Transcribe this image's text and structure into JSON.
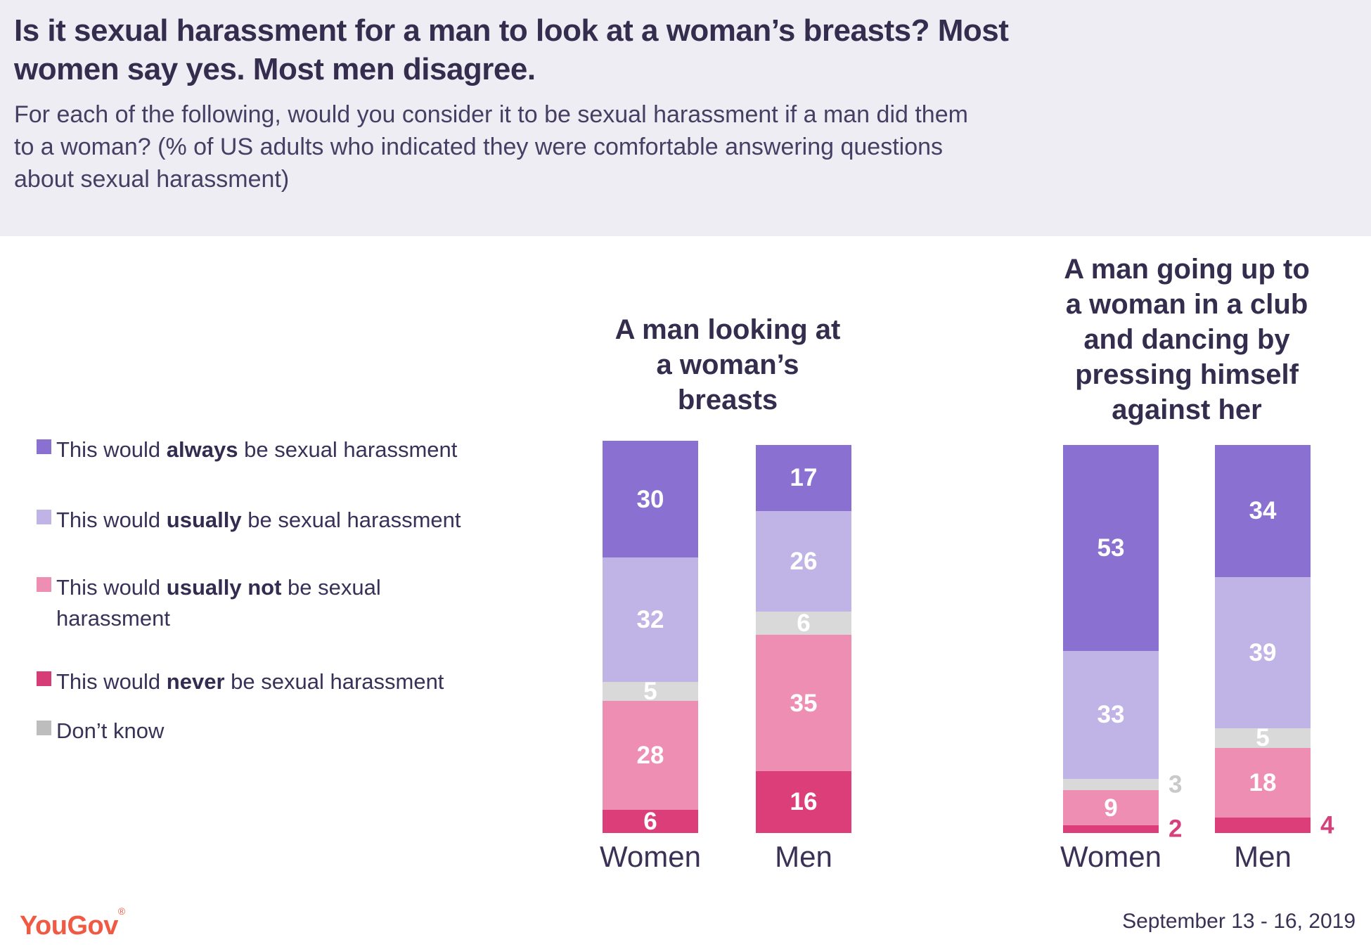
{
  "header": {
    "title": "Is it sexual harassment for a man to look at a woman’s breasts? Most\nwomen say yes. Most men disagree.",
    "subtitle": "For each of the following, would you consider it to be sexual harassment if a man did them\nto a woman? (% of US adults who indicated they were comfortable answering questions\nabout sexual harassment)"
  },
  "legend": {
    "items": [
      {
        "key": "always",
        "color": "#8a70d1",
        "pre": "This would ",
        "bold": "always",
        "post": " be sexual harassment"
      },
      {
        "key": "usually",
        "color": "#c0b4e6",
        "pre": "This would ",
        "bold": "usually",
        "post": " be sexual harassment"
      },
      {
        "key": "usually_not",
        "color": "#ef8eb3",
        "pre": "This would ",
        "bold": "usually not",
        "post": " be sexual\nharassment"
      },
      {
        "key": "never",
        "color": "#d63d76",
        "pre": "This would ",
        "bold": "never",
        "post": " be sexual harassment"
      },
      {
        "key": "dont_know",
        "color": "#bdbdbd",
        "pre": "Don’t know",
        "bold": "",
        "post": ""
      }
    ]
  },
  "chart_data": {
    "type": "bar",
    "stacked": true,
    "unit": "% of US adults who indicated they were comfortable answering questions about sexual harassment",
    "segment_order": [
      "always",
      "usually",
      "dont_know",
      "usually_not",
      "never"
    ],
    "segment_labels": {
      "always": "This would always be sexual harassment",
      "usually": "This would usually be sexual harassment",
      "dont_know": "Don’t know",
      "usually_not": "This would usually not be sexual harassment",
      "never": "This would never be sexual harassment"
    },
    "segment_colors": {
      "always": "#8a70d1",
      "usually": "#c0b4e6",
      "dont_know": "#d9d9d9",
      "usually_not": "#ef8eb3",
      "never": "#dc3e79"
    },
    "outside_label_colors": {
      "dont_know": "#c9c9c9",
      "never": "#d6407d"
    },
    "groups": [
      {
        "title": "A man looking at\na woman’s\nbreasts",
        "bars": [
          {
            "label": "Women",
            "segments": [
              {
                "key": "always",
                "value": 30
              },
              {
                "key": "usually",
                "value": 32
              },
              {
                "key": "dont_know",
                "value": 5
              },
              {
                "key": "usually_not",
                "value": 28
              },
              {
                "key": "never",
                "value": 6
              }
            ],
            "outside": []
          },
          {
            "label": "Men",
            "segments": [
              {
                "key": "always",
                "value": 17
              },
              {
                "key": "usually",
                "value": 26
              },
              {
                "key": "dont_know",
                "value": 6
              },
              {
                "key": "usually_not",
                "value": 35
              },
              {
                "key": "never",
                "value": 16
              }
            ],
            "outside": []
          }
        ]
      },
      {
        "title": "A man going up to\na woman in a club\nand dancing by\npressing himself\nagainst her",
        "bars": [
          {
            "label": "Women",
            "segments": [
              {
                "key": "always",
                "value": 53
              },
              {
                "key": "usually",
                "value": 33
              },
              {
                "key": "dont_know",
                "value": 3
              },
              {
                "key": "usually_not",
                "value": 9
              },
              {
                "key": "never",
                "value": 2
              }
            ],
            "outside": [
              "dont_know",
              "never"
            ]
          },
          {
            "label": "Men",
            "segments": [
              {
                "key": "always",
                "value": 34
              },
              {
                "key": "usually",
                "value": 39
              },
              {
                "key": "dont_know",
                "value": 5
              },
              {
                "key": "usually_not",
                "value": 18
              },
              {
                "key": "never",
                "value": 4
              }
            ],
            "outside": [
              "never"
            ]
          }
        ]
      }
    ]
  },
  "footer": {
    "brand": "YouGov",
    "registered": "®",
    "date": "September 13 - 16, 2019"
  }
}
